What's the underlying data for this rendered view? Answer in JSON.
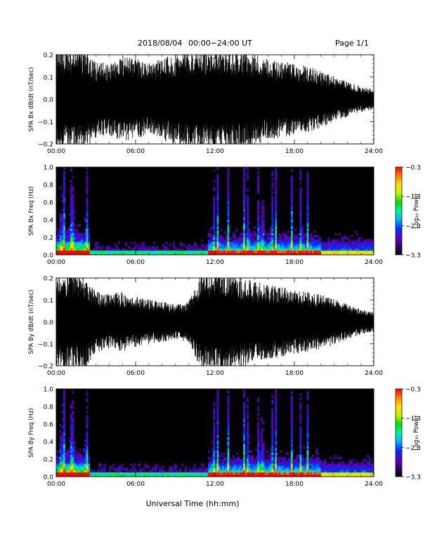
{
  "header": {
    "date": "2018/08/04",
    "time_range": "00:00−24:00 UT",
    "page": "Page 1/1"
  },
  "xaxis": {
    "label": "Universal Time (hh:mm)",
    "tick_labels": [
      "00:00",
      "06:00",
      "12:00",
      "18:00",
      "24:00"
    ],
    "range_hours": [
      0,
      24
    ]
  },
  "chart_data": [
    {
      "type": "line",
      "ylabel": "SPA Bx dB/dt (nT/sec)",
      "ylim": [
        -0.2,
        0.2
      ],
      "yticks": [
        -0.2,
        -0.1,
        0.0,
        0.1,
        0.2
      ],
      "ytick_labels": [
        "−0.2",
        "−0.1",
        "0.0",
        "0.1",
        "0.2"
      ],
      "envelope": {
        "x_hours": [
          0,
          0.5,
          1,
          1.5,
          2,
          2.5,
          3,
          4,
          5,
          6,
          7,
          8,
          9,
          10,
          11,
          12,
          13,
          14,
          15,
          16,
          17,
          18,
          19,
          20,
          21,
          22,
          23,
          24
        ],
        "amplitude": [
          0.2,
          0.2,
          0.2,
          0.2,
          0.2,
          0.18,
          0.15,
          0.14,
          0.17,
          0.16,
          0.14,
          0.16,
          0.18,
          0.2,
          0.2,
          0.2,
          0.2,
          0.19,
          0.18,
          0.16,
          0.15,
          0.14,
          0.13,
          0.11,
          0.09,
          0.07,
          0.05,
          0.04
        ]
      }
    },
    {
      "type": "heatmap",
      "ylabel": "SPA Bx Freq (Hz)",
      "ylim": [
        0.0,
        1.0
      ],
      "yticks": [
        0.0,
        0.2,
        0.4,
        0.6,
        0.8,
        1.0
      ],
      "ytick_labels": [
        "0.0",
        "0.2",
        "0.4",
        "0.6",
        "0.8",
        "1.0"
      ],
      "colorbar": {
        "label": "Log₁₀ Power",
        "range": [
          -3.3,
          -0.3
        ],
        "ticks": [
          -0.3,
          -1.3,
          -2.3,
          -3.3
        ],
        "tick_labels": [
          "−0.3",
          "−1.3",
          "−2.3",
          "−3.3"
        ],
        "colors": [
          "#000000",
          "#3a0070",
          "#5a00c8",
          "#0030ff",
          "#00b4ff",
          "#00f0a0",
          "#00e000",
          "#c8f000",
          "#ffe000",
          "#ff8000",
          "#ff0000"
        ]
      },
      "bright_times_hours": [
        0.4,
        0.6,
        1.1,
        1.3,
        2.3,
        11.9,
        12.2,
        13.0,
        14.2,
        14.5,
        15.3,
        15.6,
        16.3,
        16.6,
        17.8,
        18.5,
        19.0
      ]
    },
    {
      "type": "line",
      "ylabel": "SPA By dB/dt (nT/sec)",
      "ylim": [
        -0.2,
        0.2
      ],
      "yticks": [
        -0.2,
        -0.1,
        0.0,
        0.1,
        0.2
      ],
      "ytick_labels": [
        "−0.2",
        "−0.1",
        "0.0",
        "0.1",
        "0.2"
      ],
      "envelope": {
        "x_hours": [
          0,
          0.5,
          1,
          1.5,
          2,
          2.5,
          3,
          4,
          5,
          6,
          7,
          8,
          9,
          10,
          11,
          12,
          13,
          14,
          15,
          16,
          17,
          18,
          19,
          20,
          21,
          22,
          23,
          24
        ],
        "amplitude": [
          0.2,
          0.2,
          0.2,
          0.2,
          0.2,
          0.16,
          0.12,
          0.11,
          0.12,
          0.1,
          0.09,
          0.08,
          0.07,
          0.08,
          0.2,
          0.2,
          0.2,
          0.18,
          0.16,
          0.15,
          0.14,
          0.13,
          0.12,
          0.11,
          0.09,
          0.07,
          0.05,
          0.04
        ]
      }
    },
    {
      "type": "heatmap",
      "ylabel": "SPA By Freq (Hz)",
      "ylim": [
        0.0,
        1.0
      ],
      "yticks": [
        0.0,
        0.2,
        0.4,
        0.6,
        0.8,
        1.0
      ],
      "ytick_labels": [
        "0.0",
        "0.2",
        "0.4",
        "0.6",
        "0.8",
        "1.0"
      ],
      "colorbar": {
        "label": "Log₁₀ Power",
        "range": [
          -3.3,
          -0.3
        ],
        "ticks": [
          -0.3,
          -1.3,
          -2.3,
          -3.3
        ],
        "tick_labels": [
          "−0.3",
          "−1.3",
          "−2.3",
          "−3.3"
        ],
        "colors": [
          "#000000",
          "#3a0070",
          "#5a00c8",
          "#0030ff",
          "#00b4ff",
          "#00f0a0",
          "#00e000",
          "#c8f000",
          "#ffe000",
          "#ff8000",
          "#ff0000"
        ]
      },
      "bright_times_hours": [
        0.4,
        0.6,
        1.1,
        1.3,
        2.3,
        11.9,
        12.2,
        13.0,
        14.2,
        14.5,
        15.3,
        15.6,
        16.3,
        16.6,
        17.8,
        18.5,
        19.0
      ]
    }
  ]
}
